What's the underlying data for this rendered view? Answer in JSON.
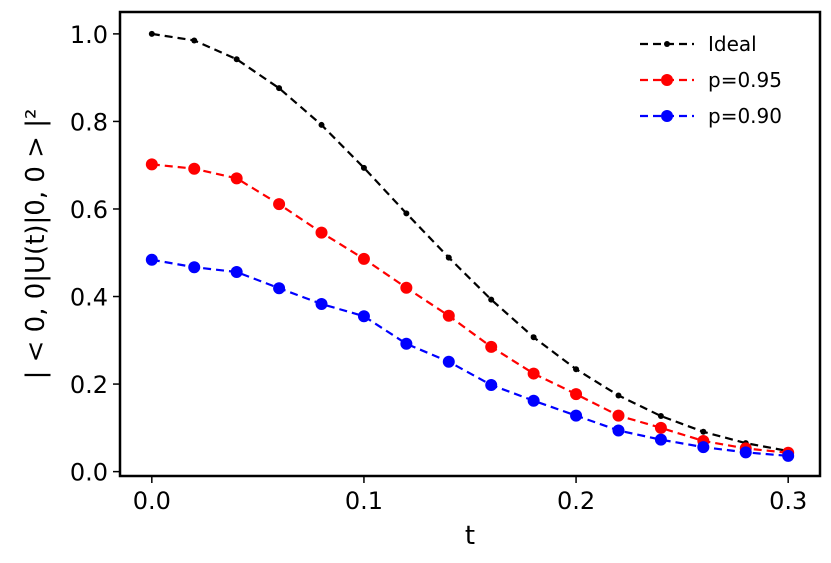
{
  "chart_data": {
    "type": "line",
    "xlabel": "t",
    "ylabel": "| < 0, 0|U(t)|0, 0 > |²",
    "xlim": [
      -0.015,
      0.315
    ],
    "ylim": [
      -0.01,
      1.05
    ],
    "xticks": [
      0.0,
      0.1,
      0.2,
      0.3
    ],
    "xtick_labels": [
      "0.0",
      "0.1",
      "0.2",
      "0.3"
    ],
    "yticks": [
      0.0,
      0.2,
      0.4,
      0.6,
      0.8,
      1.0
    ],
    "ytick_labels": [
      "0.0",
      "0.2",
      "0.4",
      "0.6",
      "0.8",
      "1.0"
    ],
    "grid": false,
    "legend_position": "top-right",
    "x": [
      0.0,
      0.02,
      0.04,
      0.06,
      0.08,
      0.1,
      0.12,
      0.14,
      0.16,
      0.18,
      0.2,
      0.22,
      0.24,
      0.26,
      0.28,
      0.3
    ],
    "series": [
      {
        "name": "Ideal",
        "color": "#000000",
        "marker": "small",
        "values": [
          1.0,
          0.985,
          0.942,
          0.876,
          0.792,
          0.694,
          0.59,
          0.489,
          0.393,
          0.307,
          0.234,
          0.174,
          0.127,
          0.091,
          0.065,
          0.047
        ]
      },
      {
        "name": "p=0.95",
        "color": "#ff0000",
        "marker": "large",
        "values": [
          0.702,
          0.692,
          0.67,
          0.611,
          0.546,
          0.486,
          0.42,
          0.356,
          0.285,
          0.224,
          0.177,
          0.128,
          0.1,
          0.07,
          0.053,
          0.043
        ]
      },
      {
        "name": "p=0.90",
        "color": "#0000ff",
        "marker": "large",
        "values": [
          0.484,
          0.467,
          0.456,
          0.419,
          0.383,
          0.355,
          0.292,
          0.251,
          0.198,
          0.162,
          0.128,
          0.094,
          0.073,
          0.056,
          0.044,
          0.036
        ]
      }
    ]
  }
}
